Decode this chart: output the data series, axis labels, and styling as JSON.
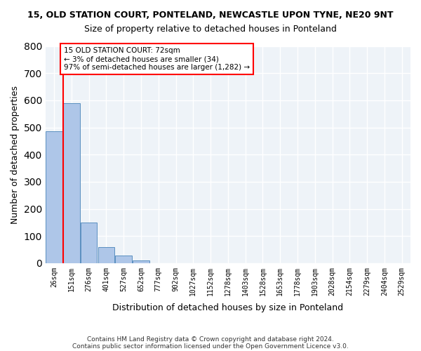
{
  "title1": "15, OLD STATION COURT, PONTELAND, NEWCASTLE UPON TYNE, NE20 9NT",
  "title2": "Size of property relative to detached houses in Ponteland",
  "xlabel": "Distribution of detached houses by size in Ponteland",
  "ylabel": "Number of detached properties",
  "bins": [
    "26sqm",
    "151sqm",
    "276sqm",
    "401sqm",
    "527sqm",
    "652sqm",
    "777sqm",
    "902sqm",
    "1027sqm",
    "1152sqm",
    "1278sqm",
    "1403sqm",
    "1528sqm",
    "1653sqm",
    "1778sqm",
    "1903sqm",
    "2028sqm",
    "2154sqm",
    "2279sqm",
    "2404sqm",
    "2529sqm"
  ],
  "bar_heights": [
    485,
    590,
    150,
    60,
    28,
    10,
    0,
    0,
    0,
    0,
    0,
    0,
    0,
    0,
    0,
    0,
    0,
    0,
    0,
    0
  ],
  "bar_color": "#aec6e8",
  "bar_edge_color": "#5a8fc0",
  "ylim": [
    0,
    800
  ],
  "yticks": [
    0,
    100,
    200,
    300,
    400,
    500,
    600,
    700,
    800
  ],
  "annotation_text": "15 OLD STATION COURT: 72sqm\n← 3% of detached houses are smaller (34)\n97% of semi-detached houses are larger (1,282) →",
  "red_line_x": 0.5,
  "footer1": "Contains HM Land Registry data © Crown copyright and database right 2024.",
  "footer2": "Contains public sector information licensed under the Open Government Licence v3.0.",
  "bg_color": "#eef3f8",
  "grid_color": "#ffffff"
}
